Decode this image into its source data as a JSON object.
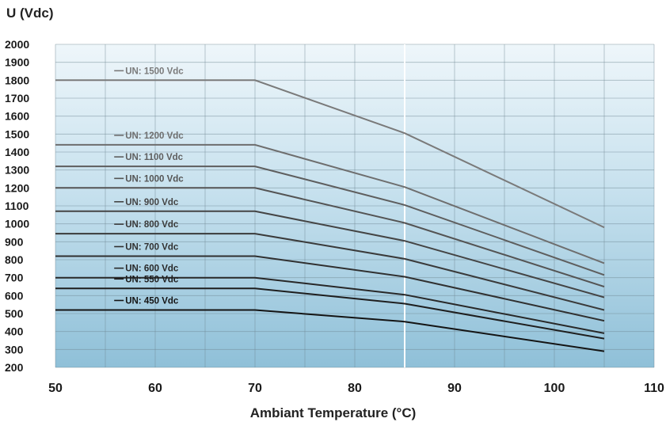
{
  "chart_data": {
    "type": "line",
    "title": "",
    "ylabel": "U (Vdc)",
    "xlabel": "Ambiant Temperature (°C)",
    "xlim": [
      50,
      110
    ],
    "ylim": [
      200,
      2000
    ],
    "x_ticks": [
      50,
      60,
      70,
      80,
      90,
      100,
      110
    ],
    "y_ticks": [
      2000,
      1900,
      1800,
      1700,
      1600,
      1500,
      1400,
      1300,
      1200,
      1100,
      1000,
      900,
      800,
      700,
      600,
      500,
      400,
      300,
      200
    ],
    "grid": true,
    "x": [
      50,
      70,
      85,
      105
    ],
    "series": [
      {
        "name": "UN: 1500 Vdc",
        "values": [
          1800,
          1800,
          1505,
          980
        ],
        "color": "#7a7a7a"
      },
      {
        "name": "UN: 1200 Vdc",
        "values": [
          1440,
          1440,
          1205,
          780
        ],
        "color": "#6e6e6e"
      },
      {
        "name": "UN: 1100 Vdc",
        "values": [
          1320,
          1320,
          1105,
          715
        ],
        "color": "#5e5e5e"
      },
      {
        "name": "UN: 1000 Vdc",
        "values": [
          1200,
          1200,
          1005,
          650
        ],
        "color": "#545454"
      },
      {
        "name": "UN: 900 Vdc",
        "values": [
          1070,
          1070,
          905,
          590
        ],
        "color": "#444444"
      },
      {
        "name": "UN: 800 Vdc",
        "values": [
          945,
          945,
          805,
          520
        ],
        "color": "#3a3a3a"
      },
      {
        "name": "UN: 700 Vdc",
        "values": [
          820,
          820,
          705,
          460
        ],
        "color": "#303030"
      },
      {
        "name": "UN: 600 Vdc",
        "values": [
          700,
          700,
          605,
          390
        ],
        "color": "#282828"
      },
      {
        "name": "UN: 550 Vdc",
        "values": [
          640,
          640,
          555,
          360
        ],
        "color": "#1e1e1e"
      },
      {
        "name": "UN: 450 Vdc",
        "values": [
          520,
          520,
          455,
          290
        ],
        "color": "#141414"
      }
    ]
  }
}
